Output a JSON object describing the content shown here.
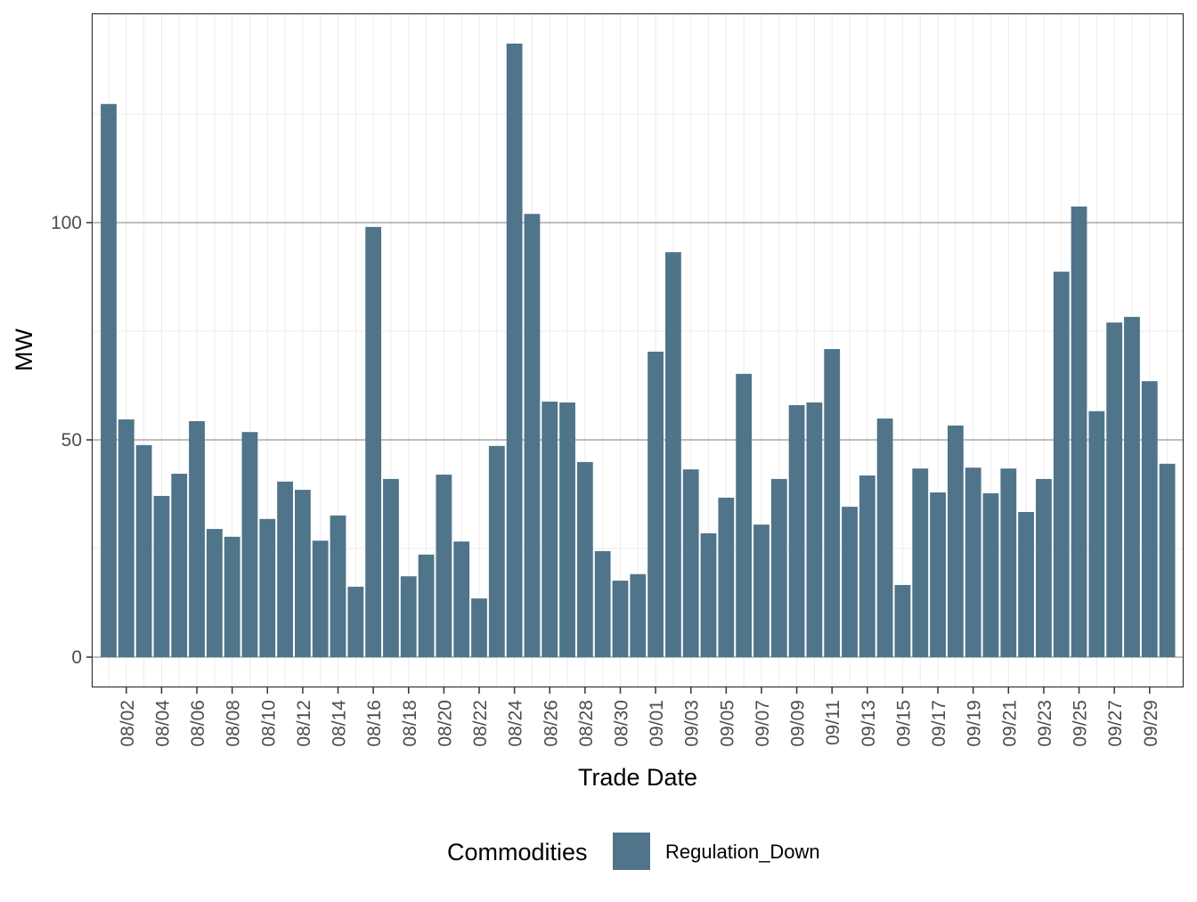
{
  "chart_data": {
    "type": "bar",
    "title": "",
    "xlabel": "Trade Date",
    "ylabel": "MW",
    "ylim": [
      -7,
      148
    ],
    "yticks": [
      0,
      50,
      100
    ],
    "grid": true,
    "legend": {
      "title": "Commodities",
      "placement": "bottom",
      "entries": [
        "Regulation_Down"
      ]
    },
    "colors": {
      "Regulation_Down": "#50748a"
    },
    "categories": [
      "08/01",
      "08/02",
      "08/03",
      "08/04",
      "08/05",
      "08/06",
      "08/07",
      "08/08",
      "08/09",
      "08/10",
      "08/11",
      "08/12",
      "08/13",
      "08/14",
      "08/15",
      "08/16",
      "08/17",
      "08/18",
      "08/19",
      "08/20",
      "08/21",
      "08/22",
      "08/23",
      "08/24",
      "08/25",
      "08/26",
      "08/27",
      "08/28",
      "08/29",
      "08/30",
      "08/31",
      "09/01",
      "09/02",
      "09/03",
      "09/04",
      "09/05",
      "09/06",
      "09/07",
      "09/08",
      "09/09",
      "09/10",
      "09/11",
      "09/12",
      "09/13",
      "09/14",
      "09/15",
      "09/16",
      "09/17",
      "09/18",
      "09/19",
      "09/20",
      "09/21",
      "09/22",
      "09/23",
      "09/24",
      "09/25",
      "09/26",
      "09/27",
      "09/28",
      "09/29",
      "09/30"
    ],
    "xtick_labels": [
      "08/02",
      "08/04",
      "08/06",
      "08/08",
      "08/10",
      "08/12",
      "08/14",
      "08/16",
      "08/18",
      "08/20",
      "08/22",
      "08/24",
      "08/26",
      "08/28",
      "08/30",
      "09/01",
      "09/03",
      "09/05",
      "09/07",
      "09/09",
      "09/11",
      "09/13",
      "09/15",
      "09/17",
      "09/19",
      "09/21",
      "09/23",
      "09/25",
      "09/27",
      "09/29"
    ],
    "series": [
      {
        "name": "Regulation_Down",
        "values": [
          127.3,
          54.7,
          48.8,
          37.1,
          42.2,
          54.3,
          29.5,
          27.7,
          51.8,
          31.8,
          40.4,
          38.5,
          26.8,
          32.6,
          16.2,
          99.0,
          41.0,
          18.6,
          23.6,
          42.0,
          26.6,
          13.5,
          48.6,
          141.2,
          102.0,
          58.8,
          58.6,
          44.9,
          24.4,
          17.6,
          19.1,
          70.3,
          93.2,
          43.2,
          28.5,
          36.7,
          65.2,
          30.5,
          41.0,
          58.0,
          58.6,
          70.9,
          34.6,
          41.8,
          54.9,
          16.6,
          43.4,
          37.9,
          53.3,
          43.6,
          37.7,
          43.4,
          33.4,
          41.0,
          88.7,
          103.7,
          56.6,
          77.0,
          78.3,
          63.5,
          44.5
        ]
      }
    ]
  }
}
